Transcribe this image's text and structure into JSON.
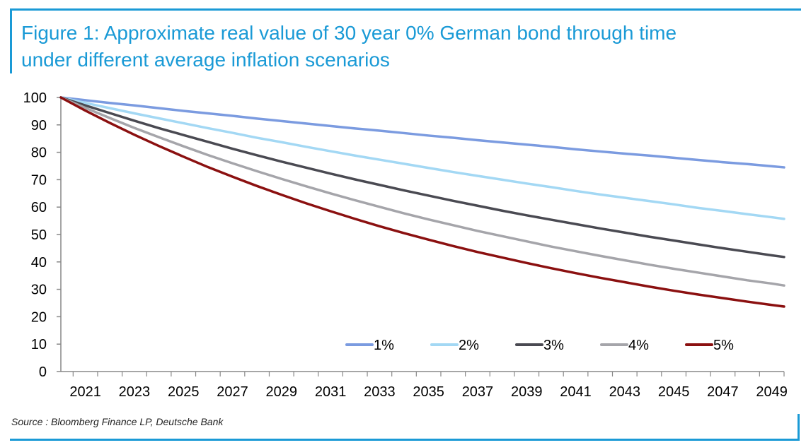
{
  "header": {
    "title_line1": "Figure 1: Approximate real value of 30 year 0% German bond through time",
    "title_line2": "under different average inflation scenarios"
  },
  "footer": {
    "source": "Source : Bloomberg Finance LP, Deutsche Bank"
  },
  "colors": {
    "accent": "#1a9ad6",
    "axis": "#888888",
    "text": "#000000"
  },
  "chart_data": {
    "type": "line",
    "title": "Figure 1: Approximate real value of 30 year 0% German bond through time under different average inflation scenarios",
    "xlabel": "",
    "ylabel": "",
    "ylim": [
      0,
      100
    ],
    "yticks": [
      0,
      10,
      20,
      30,
      40,
      50,
      60,
      70,
      80,
      90,
      100
    ],
    "xlim": [
      2020.5,
      2050
    ],
    "xticks": [
      "2021",
      "2023",
      "2025",
      "2027",
      "2029",
      "2031",
      "2033",
      "2035",
      "2037",
      "2039",
      "2041",
      "2043",
      "2045",
      "2047",
      "2049"
    ],
    "grid": false,
    "legend_position": "bottom-right",
    "x": [
      2020.5,
      2021.5,
      2022.5,
      2023.5,
      2024.5,
      2025.5,
      2026.5,
      2027.5,
      2028.5,
      2029.5,
      2030.5,
      2031.5,
      2032.5,
      2033.5,
      2034.5,
      2035.5,
      2036.5,
      2037.5,
      2038.5,
      2039.5,
      2040.5,
      2041.5,
      2042.5,
      2043.5,
      2044.5,
      2045.5,
      2046.5,
      2047.5,
      2048.5,
      2049.5,
      2050.0
    ],
    "series": [
      {
        "name": "1%",
        "color": "#7b9be0",
        "values": [
          100,
          99.0,
          98.0,
          97.1,
          96.1,
          95.1,
          94.2,
          93.3,
          92.3,
          91.4,
          90.5,
          89.6,
          88.7,
          87.9,
          87.0,
          86.1,
          85.3,
          84.4,
          83.6,
          82.8,
          82.0,
          81.1,
          80.3,
          79.5,
          78.8,
          78.0,
          77.2,
          76.4,
          75.7,
          74.9,
          74.5
        ]
      },
      {
        "name": "2%",
        "color": "#a3d8f4",
        "values": [
          100,
          98.0,
          96.1,
          94.2,
          92.4,
          90.6,
          88.8,
          87.1,
          85.3,
          83.7,
          82.0,
          80.4,
          78.8,
          77.3,
          75.8,
          74.3,
          72.8,
          71.4,
          70.0,
          68.6,
          67.3,
          65.9,
          64.6,
          63.4,
          62.2,
          61.0,
          59.7,
          58.6,
          57.4,
          56.3,
          55.7
        ]
      },
      {
        "name": "3%",
        "color": "#4a4a52",
        "values": [
          100,
          97.1,
          94.3,
          91.5,
          88.8,
          86.3,
          83.8,
          81.3,
          78.9,
          76.6,
          74.4,
          72.2,
          70.1,
          68.1,
          66.1,
          64.2,
          62.3,
          60.5,
          58.7,
          57.0,
          55.4,
          53.8,
          52.2,
          50.7,
          49.2,
          47.8,
          46.4,
          45.0,
          43.7,
          42.4,
          41.8
        ]
      },
      {
        "name": "4%",
        "color": "#a5a5aa",
        "values": [
          100,
          96.2,
          92.5,
          88.9,
          85.5,
          82.2,
          79.0,
          76.0,
          73.1,
          70.3,
          67.6,
          65.0,
          62.5,
          60.1,
          57.7,
          55.5,
          53.4,
          51.3,
          49.4,
          47.5,
          45.6,
          43.9,
          42.2,
          40.6,
          39.0,
          37.5,
          36.1,
          34.7,
          33.3,
          32.1,
          31.4
        ]
      },
      {
        "name": "5%",
        "color": "#8b1010",
        "values": [
          100,
          95.2,
          90.7,
          86.4,
          82.3,
          78.4,
          74.6,
          71.1,
          67.7,
          64.5,
          61.4,
          58.5,
          55.7,
          53.0,
          50.5,
          48.1,
          45.8,
          43.6,
          41.6,
          39.6,
          37.7,
          35.9,
          34.2,
          32.6,
          31.0,
          29.5,
          28.1,
          26.8,
          25.5,
          24.3,
          23.7
        ]
      }
    ]
  }
}
